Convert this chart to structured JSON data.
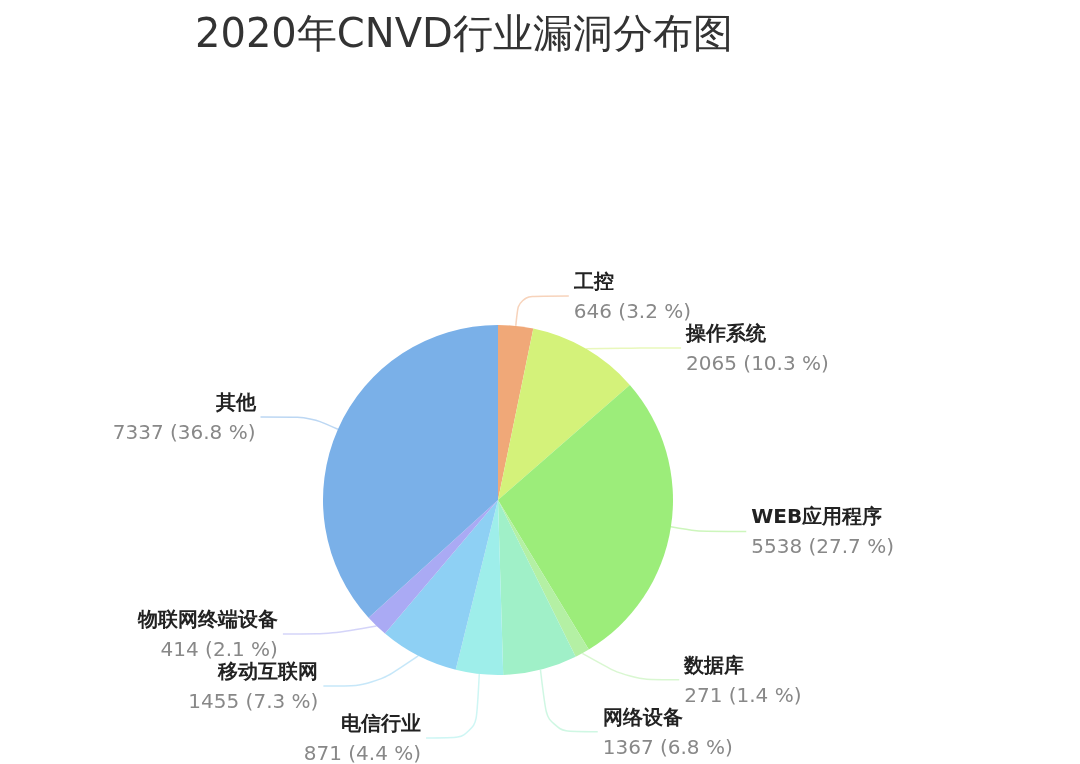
{
  "chart_data": {
    "type": "pie",
    "title": "2020年CNVD行业漏洞分布图",
    "categories": [
      "工控",
      "操作系统",
      "WEB应用程序",
      "数据库",
      "网络设备",
      "电信行业",
      "移动互联网",
      "物联网终端设备",
      "其他"
    ],
    "values": [
      646,
      2065,
      5538,
      271,
      1367,
      871,
      1455,
      414,
      7337
    ],
    "value_labels": [
      "646 (3.2 %)",
      "2065 (10.3 %)",
      "5538 (27.7 %)",
      "271 (1.4 %)",
      "1367 (6.8 %)",
      "871 (4.4 %)",
      "1455 (7.3 %)",
      "414 (2.1 %)",
      "7337 (36.8 %)"
    ],
    "colors": [
      "#f0a878",
      "#d4f27a",
      "#9ced7a",
      "#b4f0a4",
      "#a0f0c8",
      "#9eeeea",
      "#8ed0f4",
      "#aaaaf4",
      "#7ab0e8"
    ]
  }
}
